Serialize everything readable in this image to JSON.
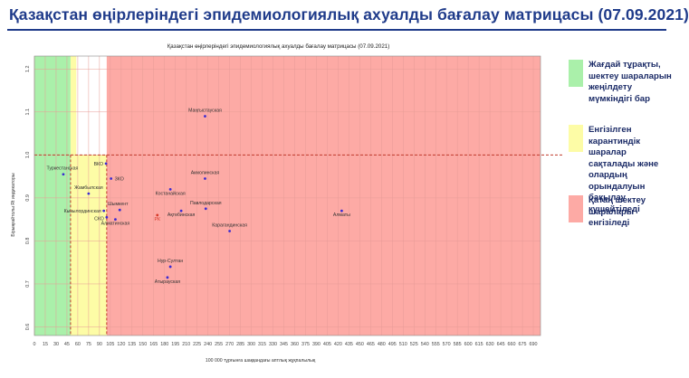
{
  "page": {
    "title": "Қазақстан өңірлеріндегі эпидемиологиялық ахуалды бағалау матрицасы  (07.09.2021)"
  },
  "legend": [
    {
      "color": "#aaf0aa",
      "text": "Жағдай тұрақты, шектеу шараларын жеңілдету мүмкіндігі бар"
    },
    {
      "color": "#fdfca6",
      "text": "Енгізілген карантиндік шаралар сақталады және олардың орындалуын бақылау күшейтіледі"
    },
    {
      "color": "#fdaaa5",
      "text": "Қатаң шектеу шаралары енгізіледі"
    }
  ],
  "chart_data": {
    "type": "scatter",
    "title": "Қазақстан өңірлеріндегі эпидемиологиялық ахуалды бағалау матрицасы  (07.09.2021)",
    "xlabel": "100 000 тұрғынға шаққандағы аптлық жұқпалылық",
    "ylabel": "Бірыңғайтолы Rt индикаторы",
    "xlim": [
      0,
      700
    ],
    "ylim": [
      0.58,
      1.23
    ],
    "xticks": [
      0,
      15,
      30,
      45,
      60,
      75,
      90,
      105,
      120,
      135,
      150,
      165,
      180,
      195,
      210,
      225,
      240,
      255,
      270,
      285,
      300,
      315,
      330,
      345,
      360,
      375,
      390,
      405,
      420,
      435,
      450,
      465,
      480,
      495,
      510,
      525,
      540,
      555,
      570,
      585,
      600,
      615,
      630,
      645,
      660,
      675,
      690
    ],
    "yticks": [
      0.6,
      0.7,
      0.8,
      0.9,
      1.0,
      1.1,
      1.2
    ],
    "ytick_labels": [
      "0.6",
      "0.7",
      "0.8",
      "0.9",
      "1.0",
      "1.1",
      "1.2"
    ],
    "zones": [
      {
        "name": "green",
        "color": "#aaf0aa",
        "x": [
          0,
          50
        ],
        "y": [
          0.58,
          1.23
        ]
      },
      {
        "name": "yellow",
        "color": "#fdfca6",
        "x": [
          50,
          100
        ],
        "y": [
          0.58,
          1.0
        ]
      },
      {
        "name": "yellow-top",
        "color": "#fdfca6",
        "x": [
          50,
          100
        ],
        "y": [
          1.0,
          1.23
        ],
        "partial_x": [
          50,
          50
        ]
      },
      {
        "name": "red",
        "color": "#fdaaa5",
        "x": [
          100,
          700
        ],
        "y": [
          0.58,
          1.23
        ]
      }
    ],
    "thresholds": {
      "x": [
        50,
        100
      ],
      "y": 1.0
    },
    "grid": true,
    "points": [
      {
        "label": "Маңғыстауская",
        "x": 236,
        "y": 1.09
      },
      {
        "label": "Туркестанская",
        "x": 40,
        "y": 0.955
      },
      {
        "label": "ВКО",
        "x": 99,
        "y": 0.98
      },
      {
        "label": "ЗКО",
        "x": 106,
        "y": 0.945
      },
      {
        "label": "Акмолинская",
        "x": 236,
        "y": 0.945
      },
      {
        "label": "Костанайская",
        "x": 188,
        "y": 0.92
      },
      {
        "label": "Жамбылская",
        "x": 75,
        "y": 0.91
      },
      {
        "label": "Павлодарская",
        "x": 237,
        "y": 0.875
      },
      {
        "label": "Шымкент",
        "x": 118,
        "y": 0.872
      },
      {
        "label": "Кызылординская",
        "x": 96,
        "y": 0.87
      },
      {
        "label": "Ақтөбинская",
        "x": 203,
        "y": 0.87
      },
      {
        "label": "Алматы",
        "x": 425,
        "y": 0.87
      },
      {
        "label": "РК",
        "x": 170,
        "y": 0.86
      },
      {
        "label": "СКО",
        "x": 100,
        "y": 0.855
      },
      {
        "label": "Алматинская",
        "x": 112,
        "y": 0.85
      },
      {
        "label": "Карагандинская",
        "x": 270,
        "y": 0.823
      },
      {
        "label": "Нур-Султан",
        "x": 188,
        "y": 0.74
      },
      {
        "label": "Атырауская",
        "x": 184,
        "y": 0.715
      }
    ]
  }
}
